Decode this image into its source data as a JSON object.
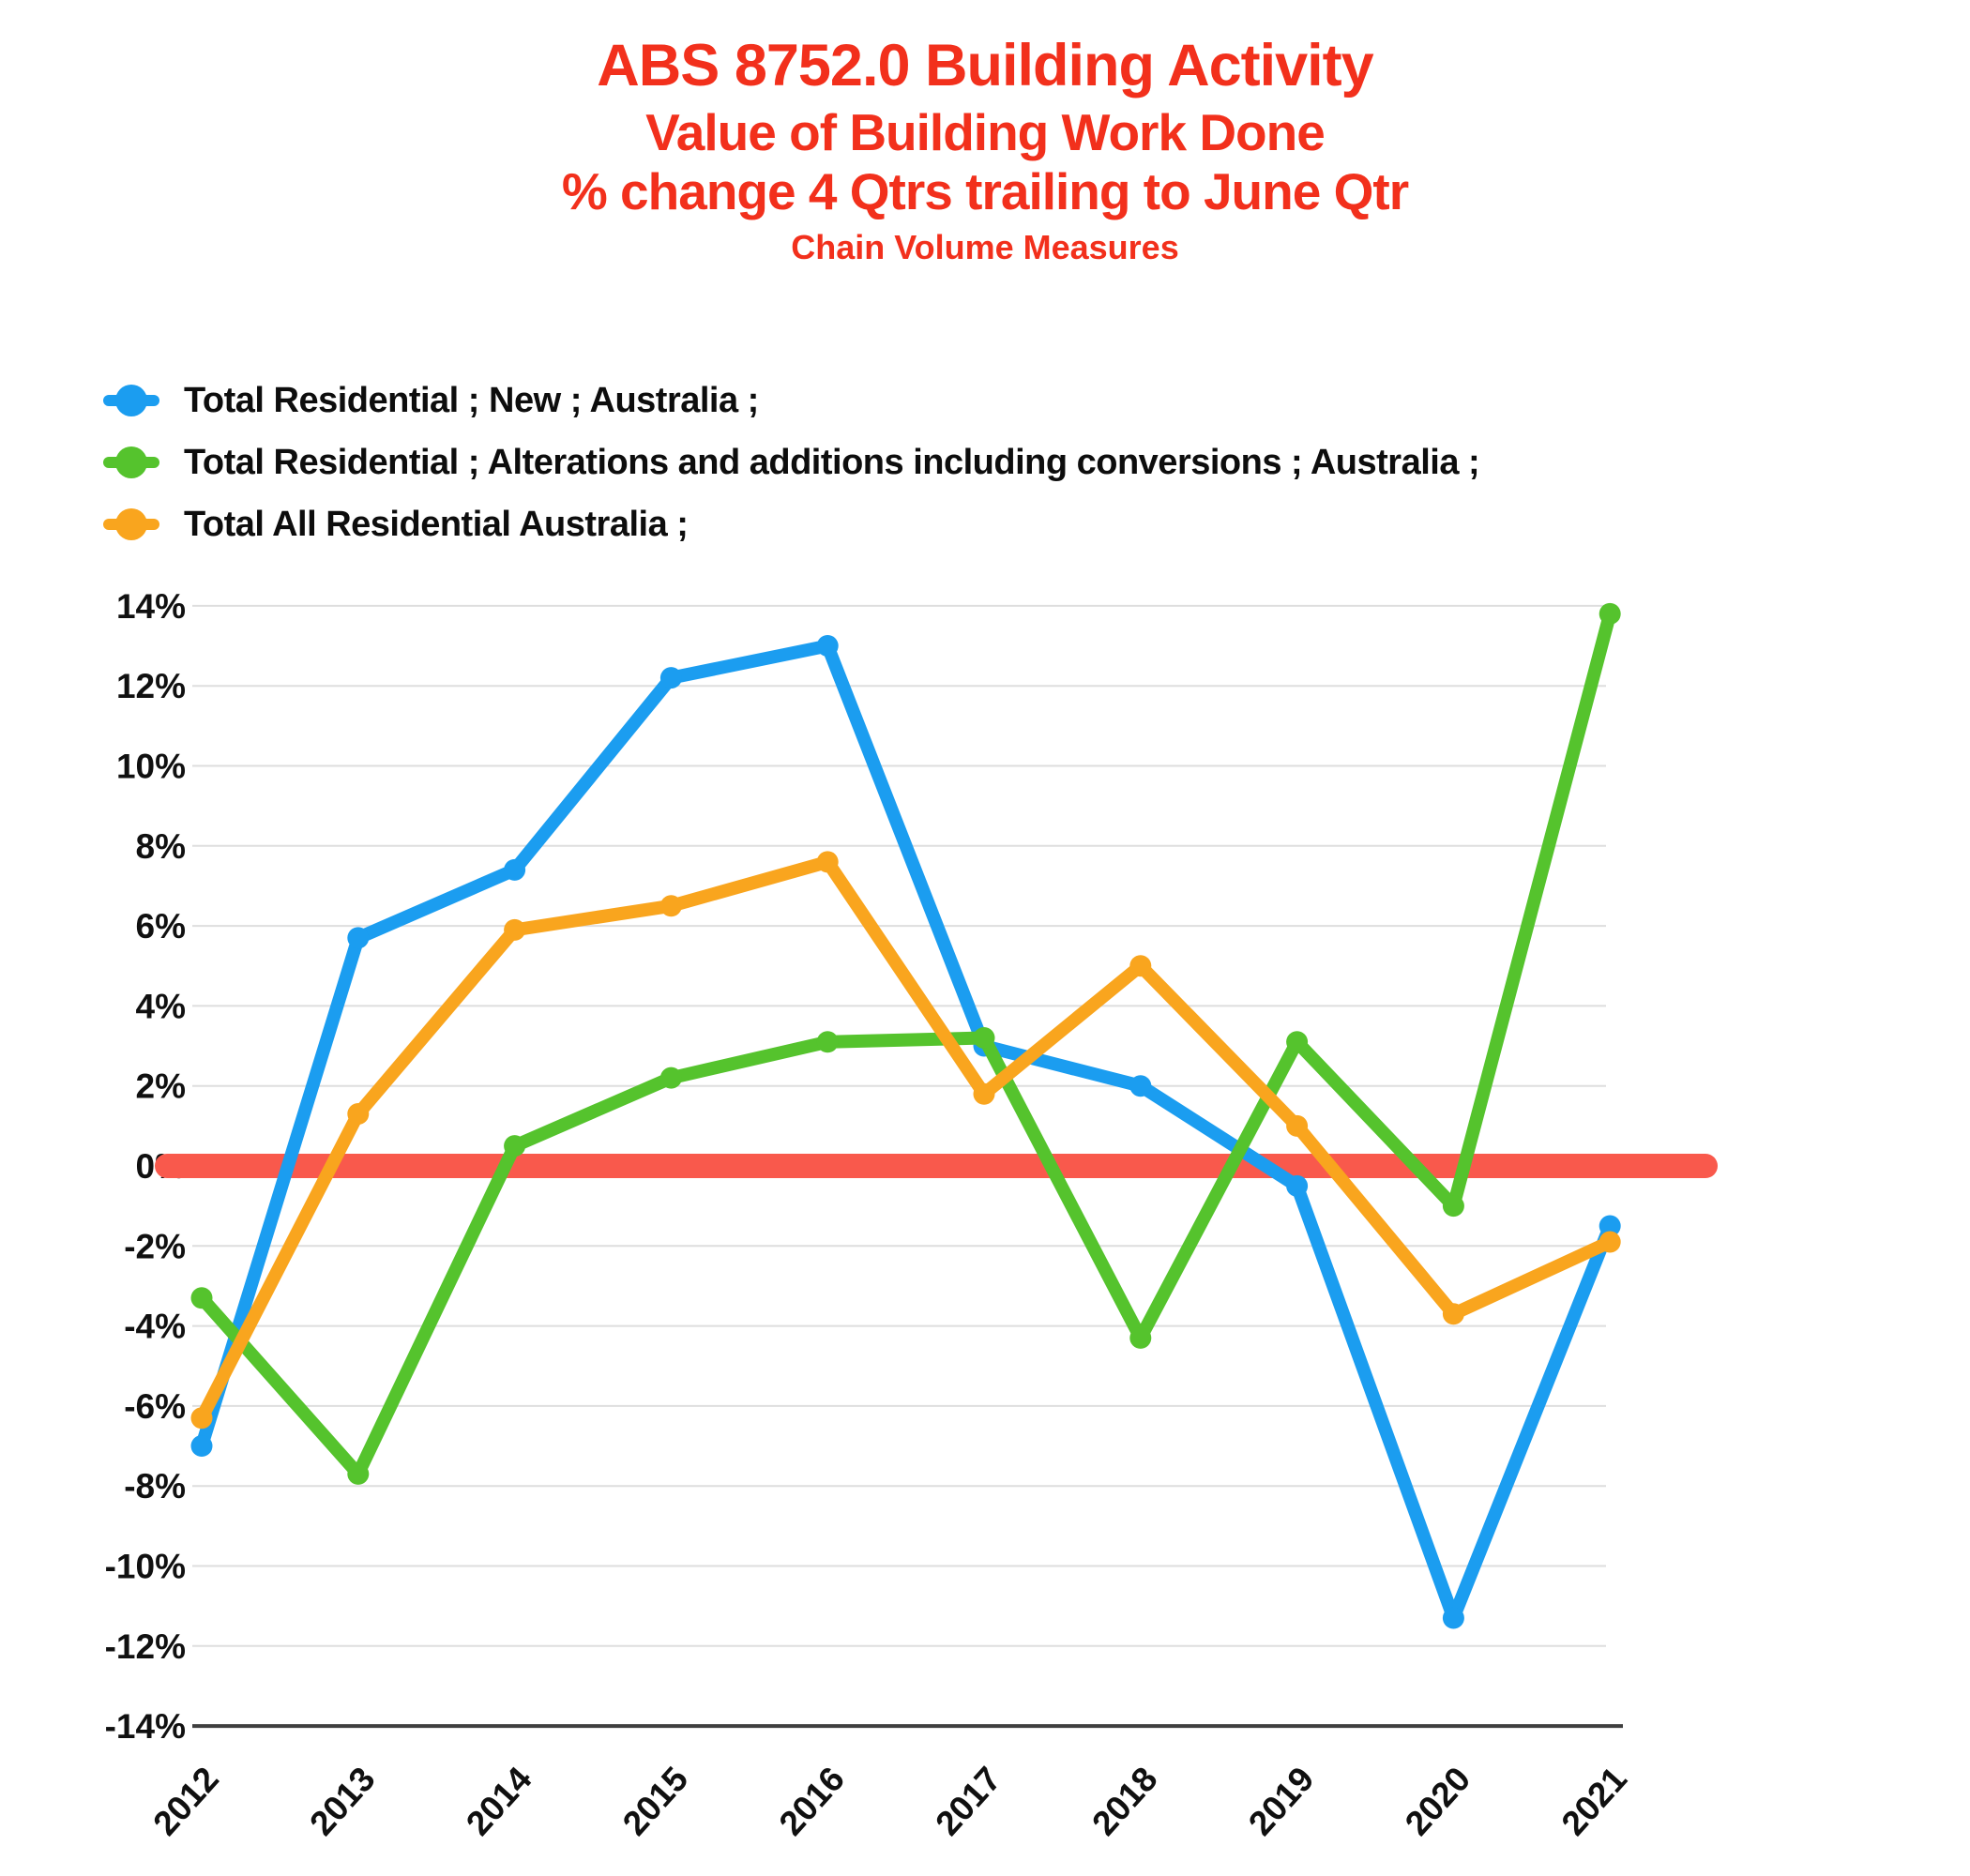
{
  "colors": {
    "title_red": "#F2301C",
    "zero_band": "#F9594C",
    "blue": "#1B9DF0",
    "green": "#55C32D",
    "orange": "#F9A51E",
    "grid": "#DEDEDE",
    "axis": "#3F3F3F",
    "text": "#101010"
  },
  "chart_data": {
    "type": "line",
    "title_lines": [
      "ABS 8752.0 Building Activity",
      "Value of Building Work Done",
      "% change 4 Qtrs trailing to June Qtr",
      "Chain Volume Measures"
    ],
    "x": [
      "2012",
      "2013",
      "2014",
      "2015",
      "2016",
      "2017",
      "2018",
      "2019",
      "2020",
      "2021"
    ],
    "series": [
      {
        "name": "Total Residential ;  New ;  Australia ;",
        "color_key": "blue",
        "values": [
          -7.0,
          5.7,
          7.4,
          12.2,
          13.0,
          3.0,
          2.0,
          -0.5,
          -11.3,
          -1.5
        ]
      },
      {
        "name": "Total Residential ;  Alterations and additions including conversions ;  Australia ;",
        "color_key": "green",
        "values": [
          -3.3,
          -7.7,
          0.5,
          2.2,
          3.1,
          3.2,
          -4.3,
          3.1,
          -1.0,
          13.8
        ]
      },
      {
        "name": "Total All Residential Australia ;",
        "color_key": "orange",
        "values": [
          -6.3,
          1.3,
          5.9,
          6.5,
          7.6,
          1.8,
          5.0,
          1.0,
          -3.7,
          -1.9
        ]
      }
    ],
    "ylim": [
      -14,
      14
    ],
    "yticks": [
      {
        "value": 14,
        "label": "14%"
      },
      {
        "value": 12,
        "label": "12%"
      },
      {
        "value": 10,
        "label": "10%"
      },
      {
        "value": 8,
        "label": "8%"
      },
      {
        "value": 6,
        "label": "6%"
      },
      {
        "value": 4,
        "label": "4%"
      },
      {
        "value": 2,
        "label": "2%"
      },
      {
        "value": 0,
        "label": "0%"
      },
      {
        "value": -2,
        "label": "-2%"
      },
      {
        "value": -4,
        "label": "-4%"
      },
      {
        "value": -6,
        "label": "-6%"
      },
      {
        "value": -8,
        "label": "-8%"
      },
      {
        "value": -10,
        "label": "-10%"
      },
      {
        "value": -12,
        "label": "-12%"
      },
      {
        "value": -14,
        "label": "-14%"
      }
    ],
    "grid": true,
    "legend_position": "top-left",
    "zero_band": {
      "value": 0,
      "color_key": "zero_band"
    }
  }
}
